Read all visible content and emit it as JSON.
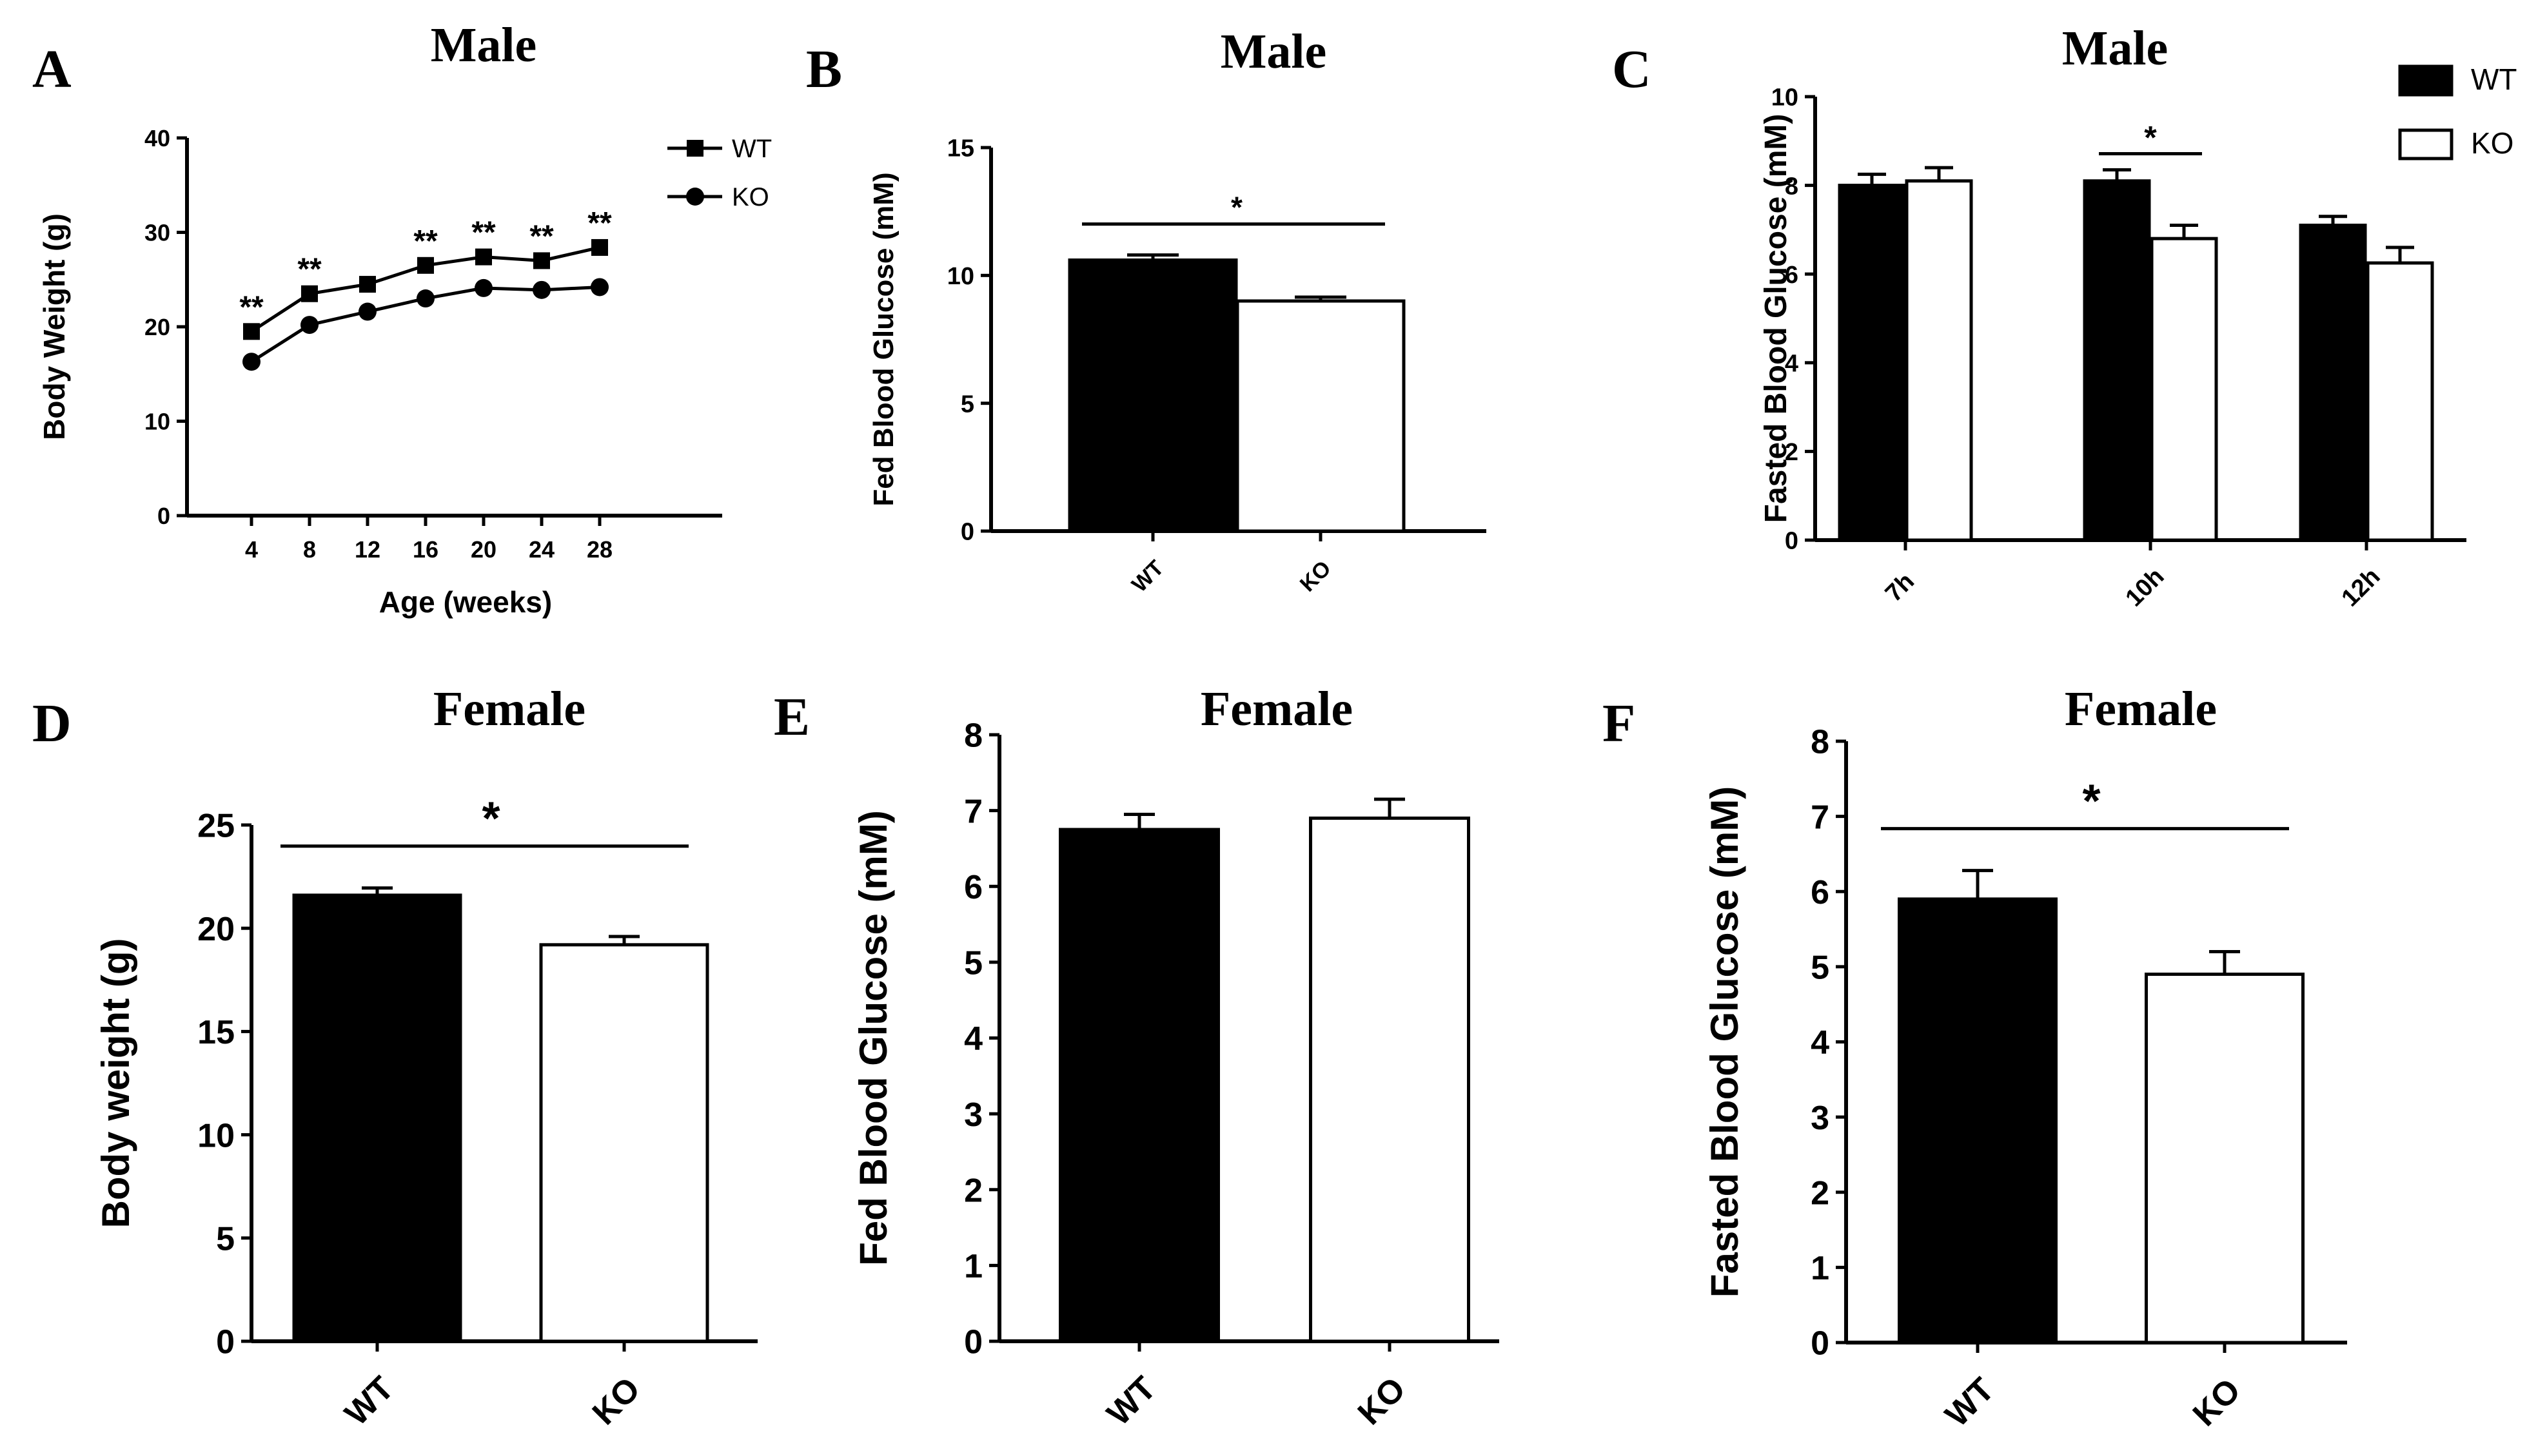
{
  "chart_data": [
    {
      "panel": "A",
      "type": "line",
      "title": "Male",
      "xlabel": "Age (weeks)",
      "ylabel": "Body Weight (g)",
      "x": [
        4,
        8,
        12,
        16,
        20,
        24,
        28
      ],
      "x_tick_labels": [
        "4",
        "8",
        "12",
        "16",
        "20",
        "24",
        "28"
      ],
      "ylim": [
        0,
        40
      ],
      "y_ticks": [
        0,
        10,
        20,
        30,
        40
      ],
      "series": [
        {
          "name": "WT",
          "marker": "square",
          "values": [
            19.5,
            23.5,
            24.5,
            26.5,
            27.4,
            27.0,
            28.4
          ]
        },
        {
          "name": "KO",
          "marker": "circle",
          "values": [
            16.3,
            20.2,
            21.6,
            23.0,
            24.1,
            23.9,
            24.2
          ]
        }
      ],
      "annotations": [
        "**",
        "**",
        "",
        "**",
        "**",
        "**",
        "**"
      ],
      "legend": "top-right"
    },
    {
      "panel": "B",
      "type": "bar",
      "title": "Male",
      "xlabel": "",
      "ylabel": "Fed Blood Glucose (mM)",
      "categories": [
        "WT",
        "KO"
      ],
      "values": [
        10.6,
        9.0
      ],
      "errors": [
        0.2,
        0.15
      ],
      "colors": [
        "#000000",
        "#ffffff"
      ],
      "ylim": [
        0,
        15
      ],
      "y_ticks": [
        0,
        5,
        10,
        15
      ],
      "significance": "*"
    },
    {
      "panel": "C",
      "type": "bar",
      "title": "Male",
      "xlabel": "",
      "ylabel": "Fasted Blood Glucose (mM)",
      "categories": [
        "7h",
        "10h",
        "12h"
      ],
      "series": [
        {
          "name": "WT",
          "color": "#000000",
          "values": [
            8.0,
            8.1,
            7.1
          ],
          "errors": [
            0.25,
            0.25,
            0.2
          ]
        },
        {
          "name": "KO",
          "color": "#ffffff",
          "values": [
            8.1,
            6.8,
            6.25
          ],
          "errors": [
            0.3,
            0.3,
            0.35
          ]
        }
      ],
      "ylim": [
        0,
        10
      ],
      "y_ticks": [
        0,
        2,
        4,
        6,
        8,
        10
      ],
      "significance": [
        {
          "category": "10h",
          "label": "*"
        }
      ],
      "legend": "top-right"
    },
    {
      "panel": "D",
      "type": "bar",
      "title": "Female",
      "xlabel": "",
      "ylabel": "Body weight (g)",
      "categories": [
        "WT",
        "KO"
      ],
      "values": [
        21.6,
        19.2
      ],
      "errors": [
        0.35,
        0.4
      ],
      "colors": [
        "#000000",
        "#ffffff"
      ],
      "ylim": [
        0,
        25
      ],
      "y_ticks": [
        0,
        5,
        10,
        15,
        20,
        25
      ],
      "significance": "*"
    },
    {
      "panel": "E",
      "type": "bar",
      "title": "Female",
      "xlabel": "",
      "ylabel": "Fed Blood Glucose (mM)",
      "categories": [
        "WT",
        "KO"
      ],
      "values": [
        6.75,
        6.9
      ],
      "errors": [
        0.2,
        0.25
      ],
      "colors": [
        "#000000",
        "#ffffff"
      ],
      "ylim": [
        0,
        8
      ],
      "y_ticks": [
        0,
        1,
        2,
        3,
        4,
        5,
        6,
        7,
        8
      ],
      "significance": ""
    },
    {
      "panel": "F",
      "type": "bar",
      "title": "Female",
      "xlabel": "",
      "ylabel": "Fasted Blood Glucose (mM)",
      "categories": [
        "WT",
        "KO"
      ],
      "values": [
        5.9,
        4.9
      ],
      "errors": [
        0.38,
        0.3
      ],
      "colors": [
        "#000000",
        "#ffffff"
      ],
      "ylim": [
        0,
        8
      ],
      "y_ticks": [
        0,
        1,
        2,
        3,
        4,
        5,
        6,
        7,
        8
      ],
      "significance": "*"
    }
  ]
}
